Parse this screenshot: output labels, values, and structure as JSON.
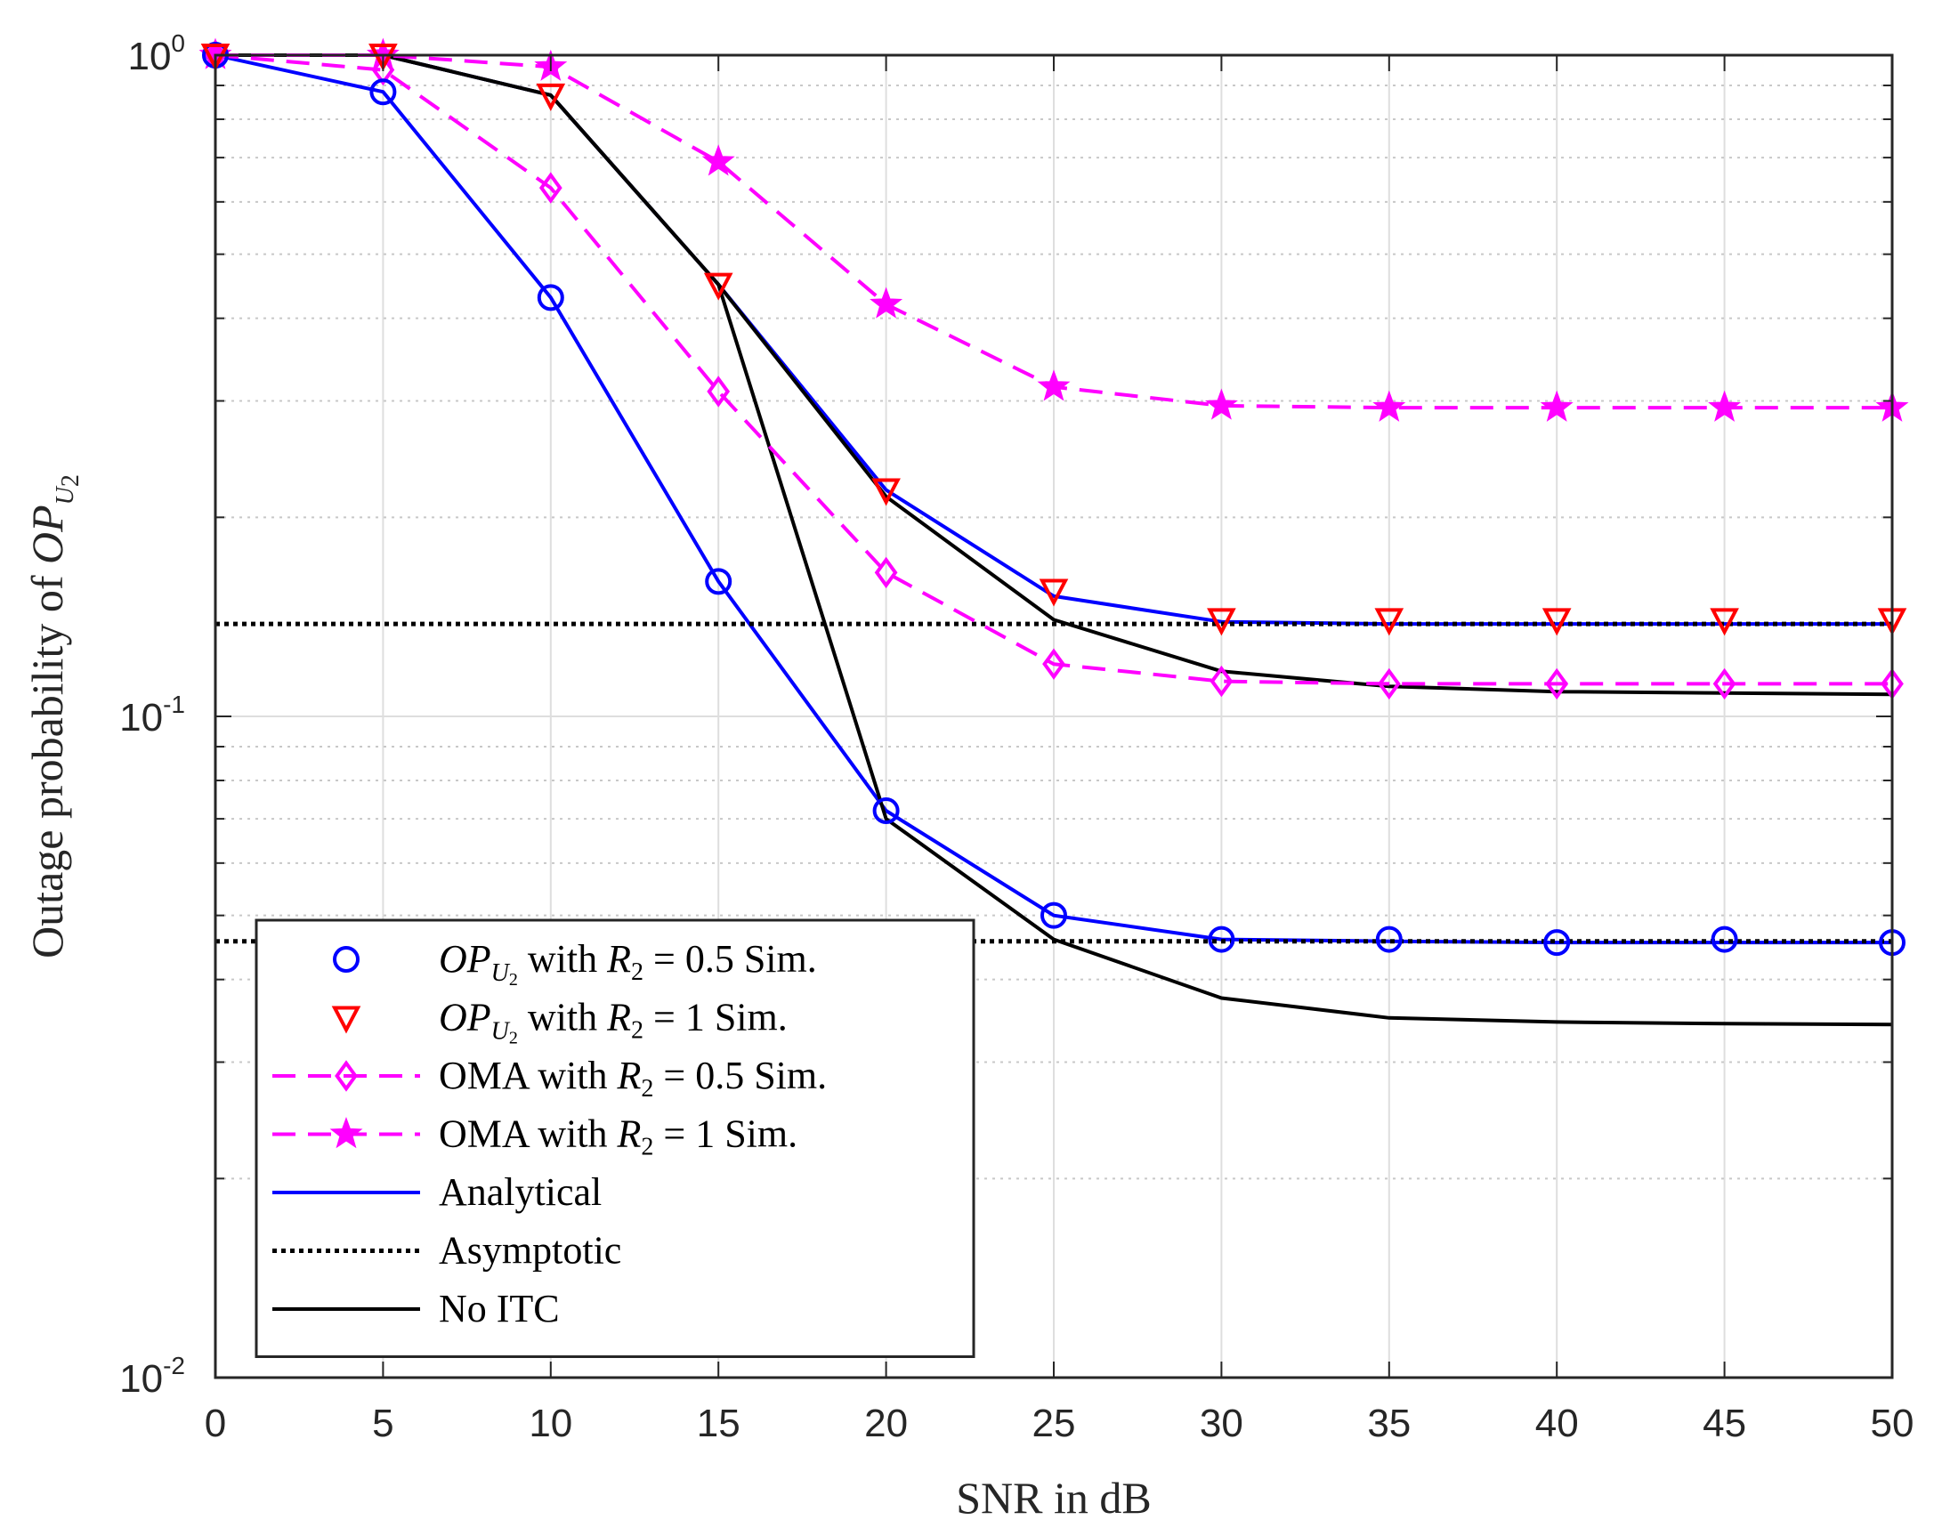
{
  "chart_data": {
    "type": "line",
    "title": "",
    "xlabel": "SNR in dB",
    "ylabel": {
      "prefix": "Outage probability of ",
      "math": "OP",
      "math_sub": "U",
      "math_sub2": "2"
    },
    "xlim": [
      0,
      50
    ],
    "ylim": [
      0.01,
      1
    ],
    "yscale": "log",
    "grid": true,
    "legend_position": "lower-left",
    "x": [
      0,
      5,
      10,
      15,
      20,
      25,
      30,
      35,
      40,
      45,
      50
    ],
    "xticks": [
      "0",
      "5",
      "10",
      "15",
      "20",
      "25",
      "30",
      "35",
      "40",
      "45",
      "50"
    ],
    "yticks": [
      {
        "value": 1,
        "base": "10",
        "exp": "0"
      },
      {
        "value": 0.1,
        "base": "10",
        "exp": "-1"
      },
      {
        "value": 0.01,
        "base": "10",
        "exp": "-2"
      }
    ],
    "series": [
      {
        "name": "OP_U2 with R2 = 0.5 Sim.",
        "legend": {
          "math": "OP",
          "sub": "U",
          "sub2": "2",
          "pre": " with ",
          "var": "R",
          "varsub": "2",
          "post": " = 0.5 Sim."
        },
        "color": "#0000ff",
        "line": "none",
        "marker": "circle",
        "values": [
          1.0,
          0.88,
          0.43,
          0.16,
          0.072,
          0.05,
          0.046,
          0.046,
          0.0455,
          0.046,
          0.0455
        ]
      },
      {
        "name": "OP_U2 with R2 = 1 Sim.",
        "legend": {
          "math": "OP",
          "sub": "U",
          "sub2": "2",
          "pre": " with ",
          "var": "R",
          "varsub": "2",
          "post": " = 1 Sim."
        },
        "color": "#ff0000",
        "line": "none",
        "marker": "triangle-down",
        "values": [
          1.0,
          1.0,
          0.87,
          0.45,
          0.22,
          0.155,
          0.14,
          0.14,
          0.14,
          0.14,
          0.14
        ]
      },
      {
        "name": "OMA with R2 = 0.5 Sim.",
        "legend": {
          "pre": "OMA with ",
          "var": "R",
          "varsub": "2",
          "post": " = 0.5 Sim."
        },
        "color": "#ff00ff",
        "line": "dashed",
        "marker": "diamond",
        "values": [
          1.0,
          0.95,
          0.63,
          0.31,
          0.165,
          0.12,
          0.113,
          0.112,
          0.112,
          0.112,
          0.112
        ]
      },
      {
        "name": "OMA with R2 = 1 Sim.",
        "legend": {
          "pre": "OMA with ",
          "var": "R",
          "varsub": "2",
          "post": " = 1 Sim."
        },
        "color": "#ff00ff",
        "line": "dashed",
        "marker": "star",
        "values": [
          1.0,
          1.0,
          0.96,
          0.69,
          0.42,
          0.315,
          0.295,
          0.293,
          0.293,
          0.293,
          0.293
        ]
      },
      {
        "name": "Analytical (R2 = 0.5)",
        "legend": {
          "pre": "Analytical"
        },
        "color": "#0000ff",
        "line": "solid",
        "marker": "none",
        "values": [
          1.0,
          0.88,
          0.43,
          0.16,
          0.072,
          0.05,
          0.046,
          0.0457,
          0.0455,
          0.0455,
          0.0455
        ]
      },
      {
        "name": "Analytical (R2 = 1)",
        "legend": null,
        "color": "#0000ff",
        "line": "solid",
        "marker": "none",
        "values": [
          1.0,
          1.0,
          0.87,
          0.45,
          0.22,
          0.152,
          0.139,
          0.138,
          0.138,
          0.138,
          0.138
        ]
      },
      {
        "name": "Asymptotic (R2 = 1)",
        "legend": {
          "pre": "Asymptotic"
        },
        "color": "#000000",
        "line": "dotted",
        "marker": "none",
        "x": [
          0,
          50
        ],
        "values": [
          0.138,
          0.138
        ]
      },
      {
        "name": "Asymptotic (R2 = 0.5)",
        "legend": null,
        "color": "#000000",
        "line": "dotted",
        "marker": "none",
        "x": [
          0,
          50
        ],
        "values": [
          0.0457,
          0.0457
        ]
      },
      {
        "name": "No ITC (R2 = 1)",
        "legend": {
          "pre": "No ITC"
        },
        "color": "#000000",
        "line": "solid",
        "marker": "none",
        "values": [
          1.0,
          1.0,
          0.87,
          0.45,
          0.215,
          0.14,
          0.117,
          0.111,
          0.109,
          0.1085,
          0.108
        ]
      },
      {
        "name": "No ITC (R2 = 0.5)",
        "legend": null,
        "color": "#000000",
        "line": "solid",
        "marker": "none",
        "values": [
          1.0,
          1.0,
          0.87,
          0.45,
          0.07,
          0.046,
          0.0375,
          0.035,
          0.0345,
          0.0343,
          0.0342
        ]
      }
    ]
  }
}
